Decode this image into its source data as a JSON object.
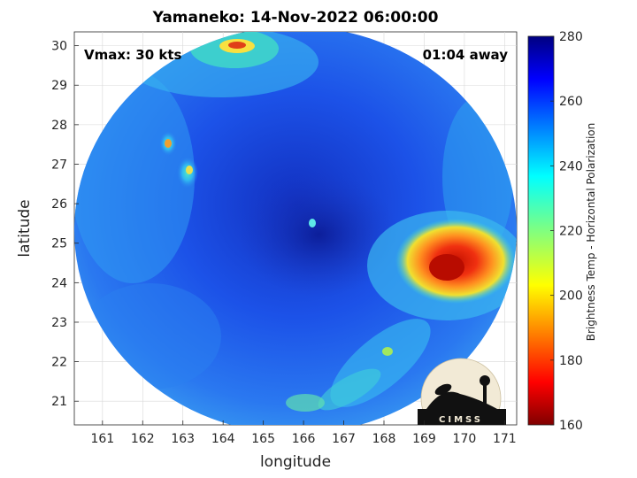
{
  "title": "Yamaneko: 14-Nov-2022 06:00:00",
  "xlabel": "longitude",
  "ylabel": "latitude",
  "colorbar_label": "Brightness Temp - Horizontal Polarization",
  "annotations": {
    "vmax": "Vmax: 30 kts",
    "away": "01:04 away"
  },
  "logo_text": "CIMSS",
  "axes": {
    "x_ticks": [
      161,
      162,
      163,
      164,
      165,
      166,
      167,
      168,
      169,
      170,
      171
    ],
    "y_ticks": [
      21,
      22,
      23,
      24,
      25,
      26,
      27,
      28,
      29,
      30
    ],
    "xlim": [
      160.3,
      171.3
    ],
    "ylim": [
      20.4,
      30.35
    ]
  },
  "colorbar": {
    "ticks": [
      160,
      180,
      200,
      220,
      240,
      260,
      280
    ],
    "range": [
      160,
      280
    ],
    "colormap": "jet"
  },
  "features": {
    "swath_color": "#1c4fe6",
    "center": {
      "lon": 166.7,
      "lat": 25.0,
      "value": 262
    },
    "cold_cloud": {
      "lon": 169.8,
      "lat": 24.5,
      "min_value": 175
    }
  }
}
